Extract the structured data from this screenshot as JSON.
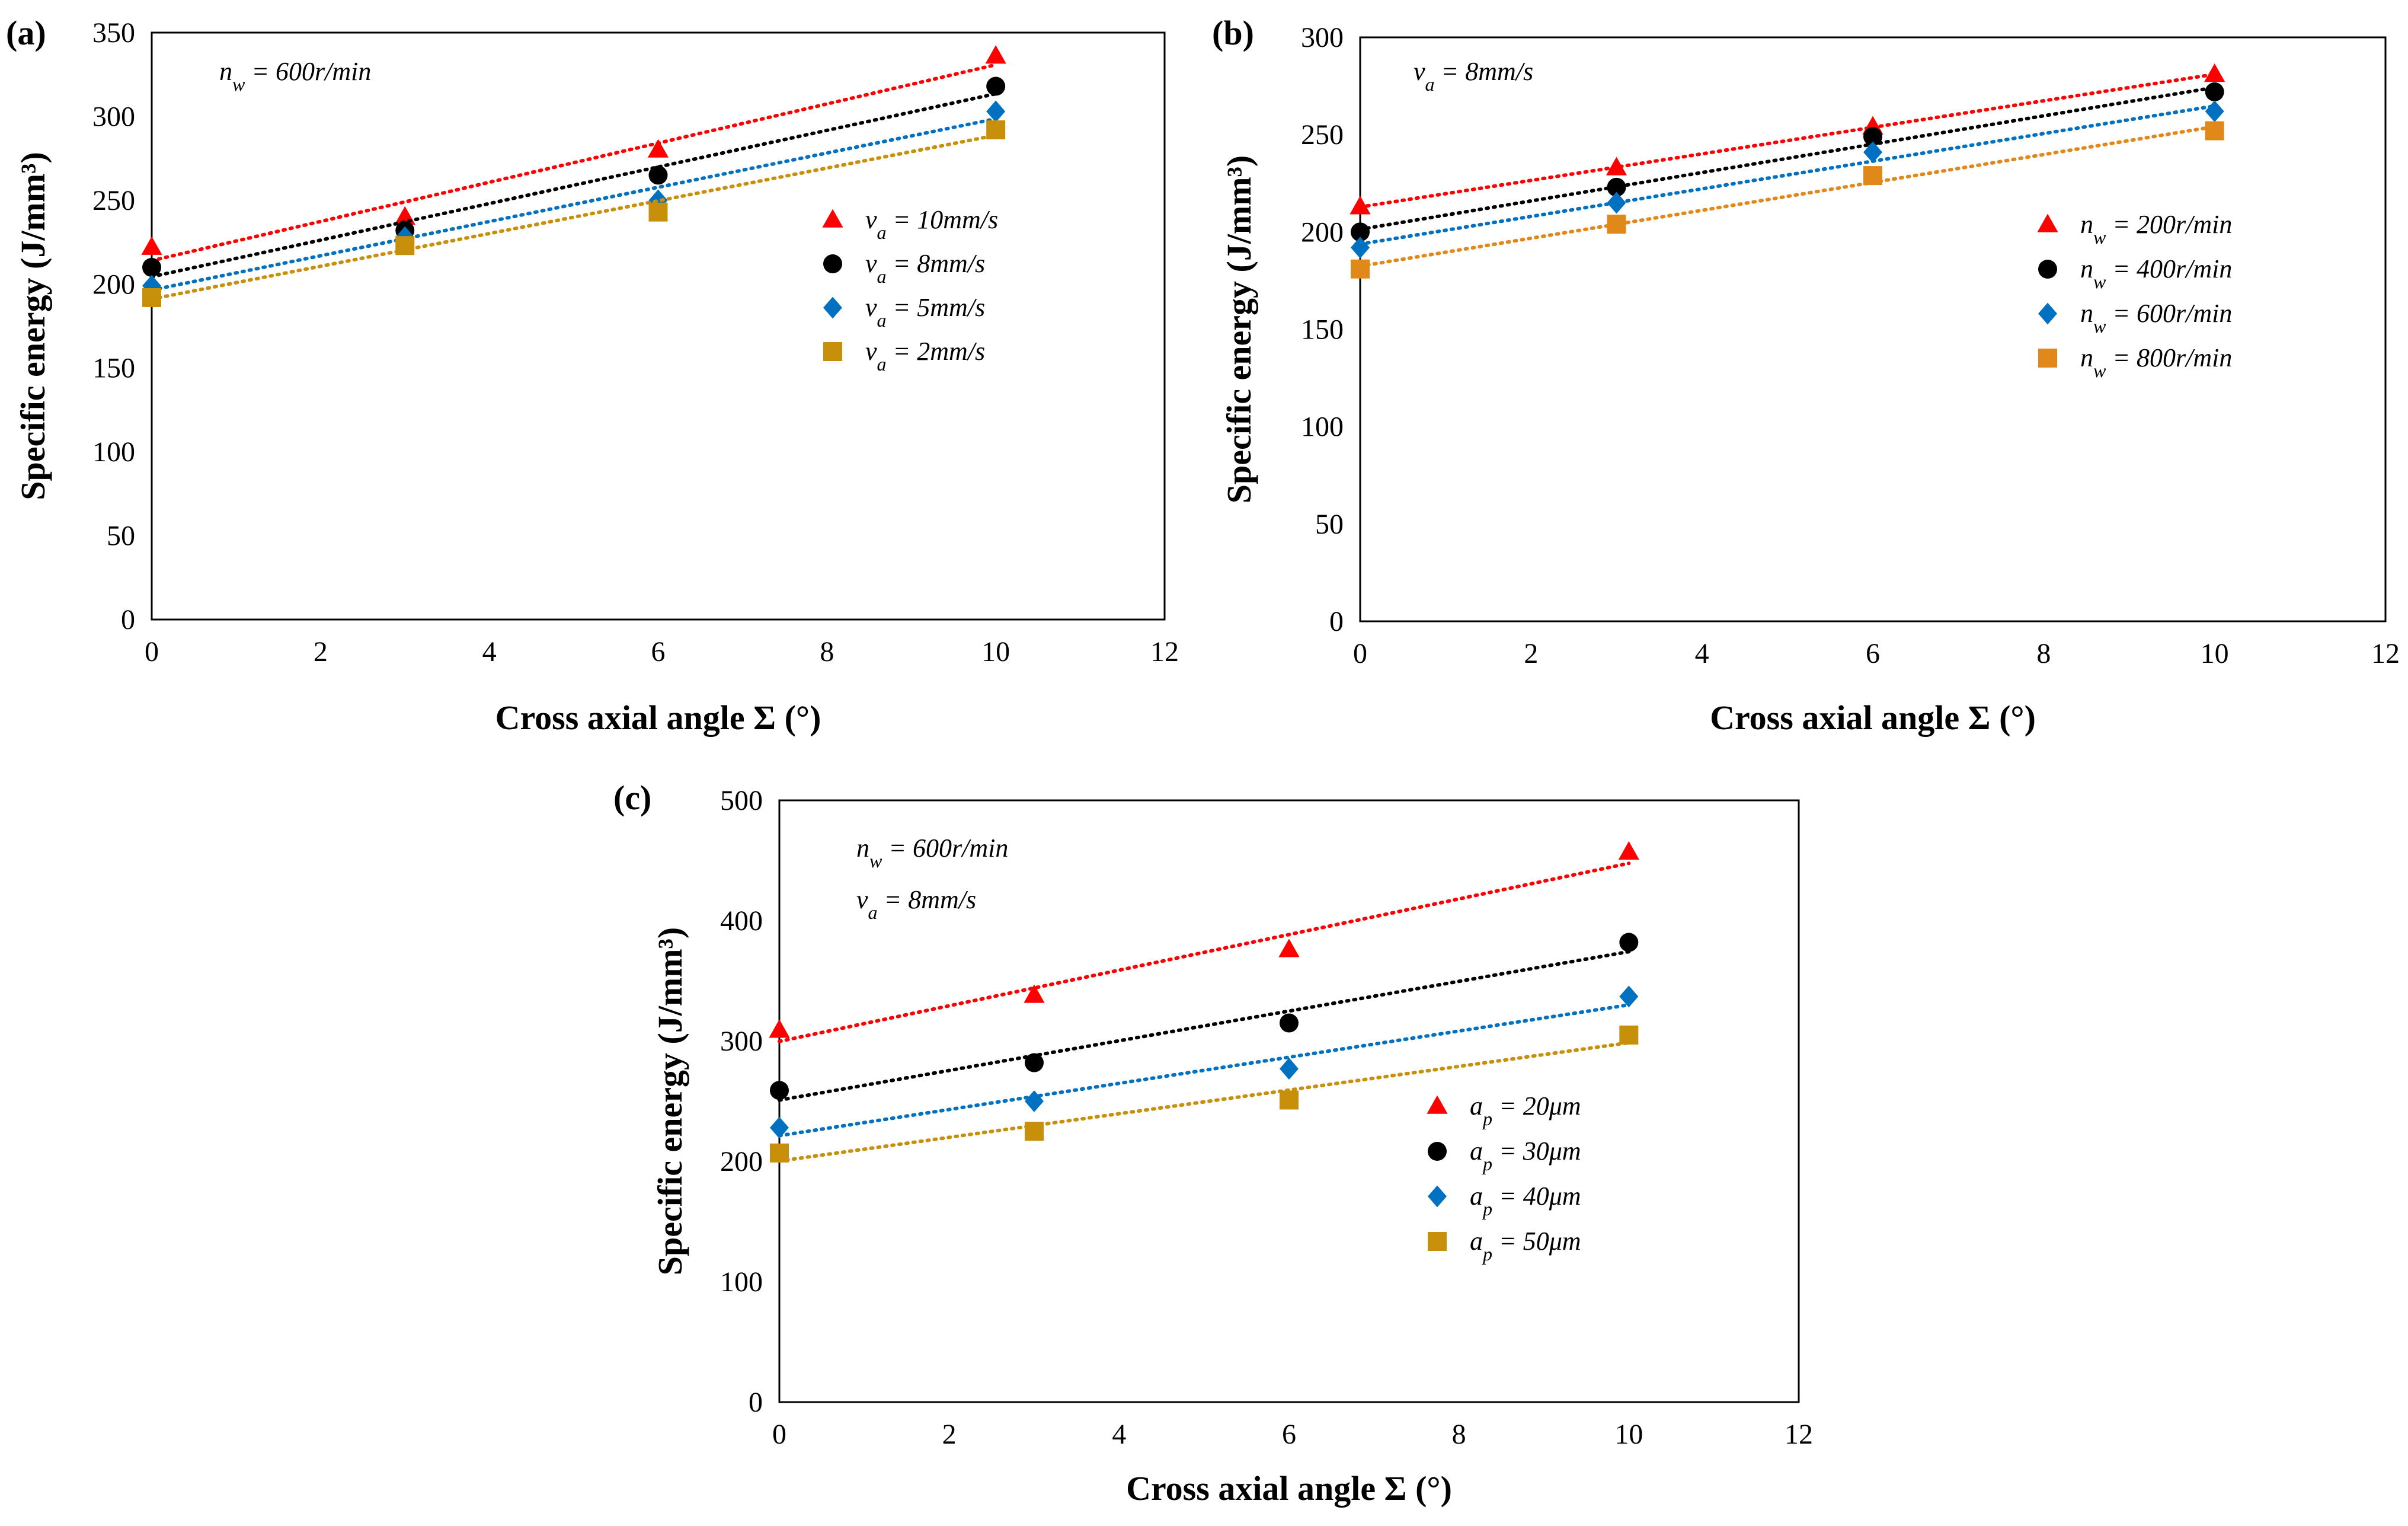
{
  "chart_data": [
    {
      "type": "scatter",
      "panel_label": "(a)",
      "xlabel": "Cross axial angle Σ (°)",
      "ylabel": "Specific energy (J/mm³)",
      "xlim": [
        0,
        12
      ],
      "ylim": [
        0,
        350
      ],
      "xticks": [
        0,
        2,
        4,
        6,
        8,
        10,
        12
      ],
      "yticks": [
        0,
        50,
        100,
        150,
        200,
        250,
        300,
        350
      ],
      "annotations": [
        "n_w = 600r/min"
      ],
      "legend_position": "right",
      "trendline": "linear dotted",
      "x": [
        0,
        3,
        6,
        10
      ],
      "series": [
        {
          "name": "v_a = 10mm/s",
          "marker": "triangle",
          "color": "#ff0000",
          "values": [
            222,
            240,
            280,
            336
          ]
        },
        {
          "name": "v_a = 8mm/s",
          "marker": "circle",
          "color": "#000000",
          "values": [
            210,
            232,
            265,
            318
          ]
        },
        {
          "name": "v_a = 5mm/s",
          "marker": "diamond",
          "color": "#0070c0",
          "values": [
            199,
            228,
            250,
            303
          ]
        },
        {
          "name": "v_a = 2mm/s",
          "marker": "square",
          "color": "#c8900a",
          "values": [
            192,
            223,
            243,
            292
          ]
        }
      ]
    },
    {
      "type": "scatter",
      "panel_label": "(b)",
      "xlabel": "Cross axial angle Σ (°)",
      "ylabel": "Specific energy (J/mm³)",
      "xlim": [
        0,
        12
      ],
      "ylim": [
        0,
        300
      ],
      "xticks": [
        0,
        2,
        4,
        6,
        8,
        10,
        12
      ],
      "yticks": [
        0,
        50,
        100,
        150,
        200,
        250,
        300
      ],
      "annotations": [
        "v_a = 8mm/s"
      ],
      "legend_position": "right",
      "trendline": "linear dotted",
      "x": [
        0,
        3,
        6,
        10
      ],
      "series": [
        {
          "name": "n_w = 200r/min",
          "marker": "triangle",
          "color": "#ff0000",
          "values": [
            213,
            233,
            254,
            281
          ]
        },
        {
          "name": "n_w = 400r/min",
          "marker": "circle",
          "color": "#000000",
          "values": [
            200,
            223,
            249,
            272
          ]
        },
        {
          "name": "n_w = 600r/min",
          "marker": "diamond",
          "color": "#0070c0",
          "values": [
            192,
            215,
            241,
            262
          ]
        },
        {
          "name": "n_w = 800r/min",
          "marker": "square",
          "color": "#e0891a",
          "values": [
            181,
            204,
            229,
            252
          ]
        }
      ]
    },
    {
      "type": "scatter",
      "panel_label": "(c)",
      "xlabel": "Cross axial angle Σ (°)",
      "ylabel": "Specific energy (J/mm³)",
      "xlim": [
        0,
        12
      ],
      "ylim": [
        0,
        500
      ],
      "xticks": [
        0,
        2,
        4,
        6,
        8,
        10,
        12
      ],
      "yticks": [
        0,
        100,
        200,
        300,
        400,
        500
      ],
      "annotations": [
        "n_w = 600r/min",
        "v_a = 8mm/s"
      ],
      "legend_position": "bottom-right",
      "trendline": "linear dotted",
      "x": [
        0,
        3,
        6,
        10
      ],
      "series": [
        {
          "name": "a_p = 20μm",
          "marker": "triangle",
          "color": "#ff0000",
          "values": [
            309,
            338,
            376,
            457
          ]
        },
        {
          "name": "a_p = 30μm",
          "marker": "circle",
          "color": "#000000",
          "values": [
            259,
            282,
            315,
            382
          ]
        },
        {
          "name": "a_p = 40μm",
          "marker": "diamond",
          "color": "#0070c0",
          "values": [
            228,
            250,
            277,
            337
          ]
        },
        {
          "name": "a_p = 50μm",
          "marker": "square",
          "color": "#c8900a",
          "values": [
            207,
            225,
            251,
            305
          ]
        }
      ]
    }
  ]
}
